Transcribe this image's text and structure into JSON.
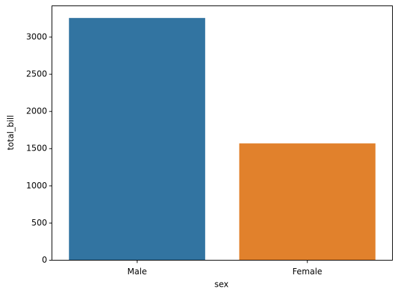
{
  "chart_data": {
    "type": "bar",
    "x_label": "sex",
    "y_label": "total_bill",
    "categories": [
      "Male",
      "Female"
    ],
    "values": [
      3256.82,
      1570.95
    ],
    "colors": [
      "#3274a1",
      "#e1812c"
    ],
    "ylim": [
      0,
      3420
    ],
    "yticks": [
      0,
      500,
      1000,
      1500,
      2000,
      2500,
      3000
    ],
    "grid": false
  }
}
